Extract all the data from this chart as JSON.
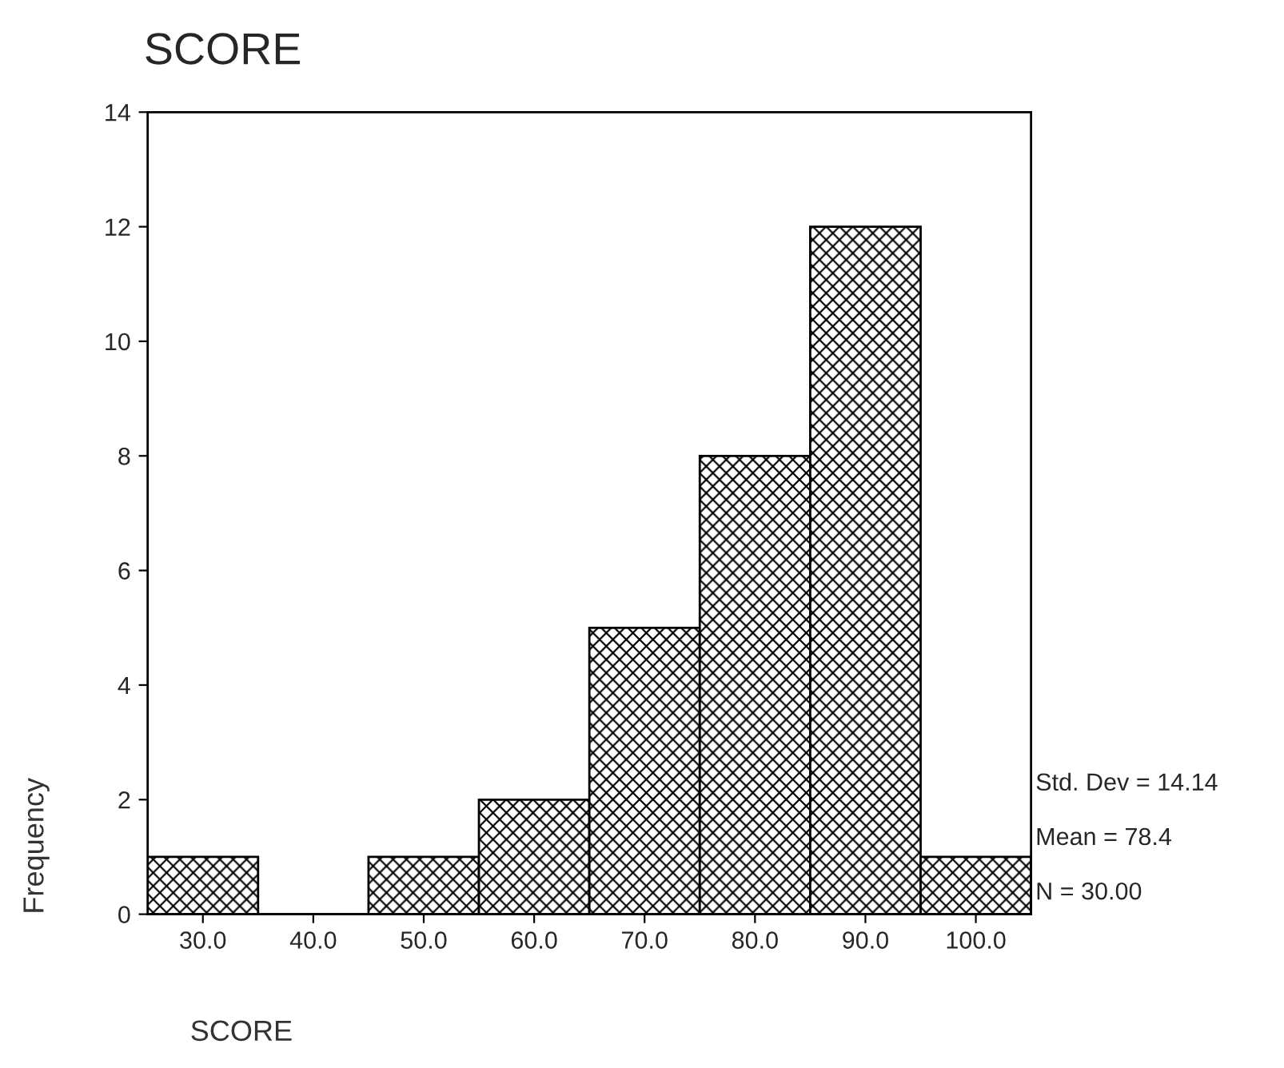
{
  "chart_data": {
    "type": "histogram",
    "title": "SCORE",
    "xlabel": "SCORE",
    "ylabel": "Frequency",
    "bins": [
      25,
      35,
      45,
      55,
      65,
      75,
      85,
      95,
      105
    ],
    "values": [
      1,
      0,
      1,
      2,
      5,
      8,
      12,
      1
    ],
    "color": "#000000",
    "xlim": [
      25,
      105
    ],
    "xticks": [
      {
        "value": 30,
        "label": "30.0"
      },
      {
        "value": 40,
        "label": "40.0"
      },
      {
        "value": 50,
        "label": "50.0"
      },
      {
        "value": 60,
        "label": "60.0"
      },
      {
        "value": 70,
        "label": "70.0"
      },
      {
        "value": 80,
        "label": "80.0"
      },
      {
        "value": 90,
        "label": "90.0"
      },
      {
        "value": 100,
        "label": "100.0"
      }
    ],
    "ylim": [
      0,
      14
    ],
    "yticks": [
      0,
      2,
      4,
      6,
      8,
      10,
      12,
      14
    ],
    "annotations": [
      "Std. Dev = 14.14",
      "Mean = 78.4",
      "N = 30.00"
    ],
    "grid": false,
    "legend": false
  }
}
